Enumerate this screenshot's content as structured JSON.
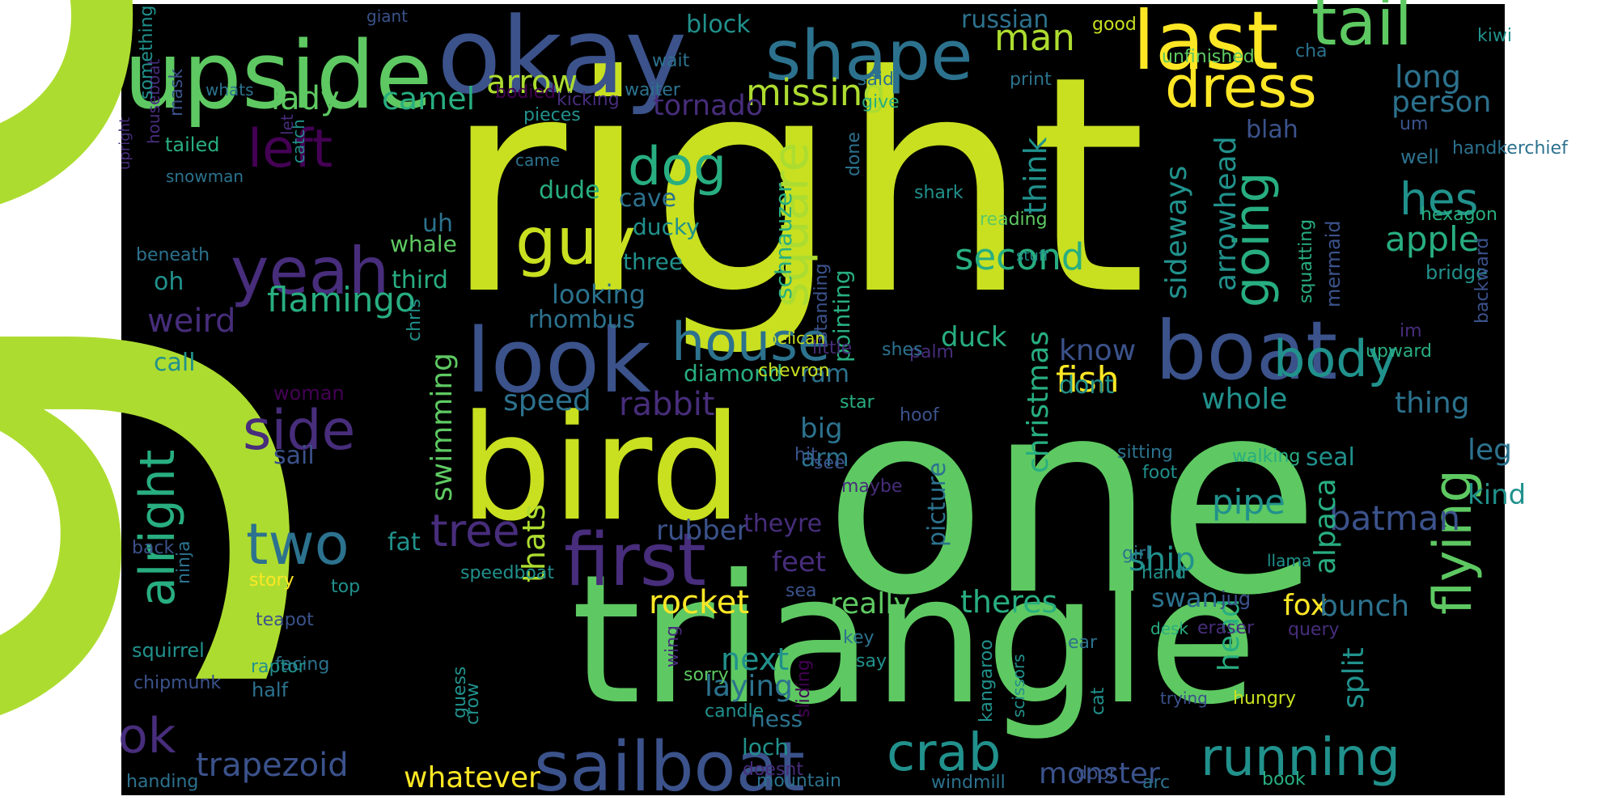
{
  "palette": {
    "page_background": "#ffffff",
    "panel_background": "#000000",
    "colors": [
      "#440154",
      "#472d7b",
      "#3b528b",
      "#2c728e",
      "#21918c",
      "#28ae80",
      "#5ec962",
      "#addc30",
      "#c8e020",
      "#fde725"
    ]
  },
  "words": [
    {
      "text": "got",
      "c": 7
    },
    {
      "text": "right",
      "c": 8
    },
    {
      "text": "one",
      "c": 6
    },
    {
      "text": "triangle",
      "c": 6
    },
    {
      "text": "bird",
      "c": 8
    },
    {
      "text": "okay",
      "c": 2
    },
    {
      "text": "upside",
      "c": 6
    },
    {
      "text": "shape",
      "c": 3
    },
    {
      "text": "last",
      "c": 9
    },
    {
      "text": "tail",
      "c": 6
    },
    {
      "text": "dress",
      "c": 9
    },
    {
      "text": "look",
      "c": 2
    },
    {
      "text": "boat",
      "c": 2
    },
    {
      "text": "first",
      "c": 1
    },
    {
      "text": "sailboat",
      "c": 2
    },
    {
      "text": "yeah",
      "c": 1
    },
    {
      "text": "guy",
      "c": 8
    },
    {
      "text": "dog",
      "c": 5
    },
    {
      "text": "two",
      "c": 3
    },
    {
      "text": "side",
      "c": 1
    },
    {
      "text": "left",
      "c": 0
    },
    {
      "text": "alright",
      "c": 5
    },
    {
      "text": "house",
      "c": 3
    },
    {
      "text": "running",
      "c": 4
    },
    {
      "text": "flying",
      "c": 6
    },
    {
      "text": "crab",
      "c": 4
    },
    {
      "text": "square",
      "c": 7
    },
    {
      "text": "going",
      "c": 5
    },
    {
      "text": "body",
      "c": 4
    },
    {
      "text": "hes",
      "c": 4
    },
    {
      "text": "tree",
      "c": 1
    },
    {
      "text": "ok",
      "c": 1
    },
    {
      "text": "missing",
      "c": 7
    },
    {
      "text": "man",
      "c": 7
    },
    {
      "text": "long",
      "c": 3
    },
    {
      "text": "arrow",
      "c": 7
    },
    {
      "text": "lady",
      "c": 6
    },
    {
      "text": "camel",
      "c": 5
    },
    {
      "text": "tornado",
      "c": 1
    },
    {
      "text": "person",
      "c": 3
    },
    {
      "text": "apple",
      "c": 5
    },
    {
      "text": "second",
      "c": 5
    },
    {
      "text": "flamingo",
      "c": 5
    },
    {
      "text": "weird",
      "c": 1
    },
    {
      "text": "rabbit",
      "c": 1
    },
    {
      "text": "speed",
      "c": 3
    },
    {
      "text": "fish",
      "c": 9
    },
    {
      "text": "whole",
      "c": 4
    },
    {
      "text": "thing",
      "c": 3
    },
    {
      "text": "christmas",
      "c": 5
    },
    {
      "text": "swimming",
      "c": 6
    },
    {
      "text": "pipe",
      "c": 4
    },
    {
      "text": "batman",
      "c": 2
    },
    {
      "text": "rocket",
      "c": 9
    },
    {
      "text": "thats",
      "c": 7
    },
    {
      "text": "theres",
      "c": 5
    },
    {
      "text": "fox",
      "c": 9
    },
    {
      "text": "bunch",
      "c": 3
    },
    {
      "text": "ship",
      "c": 4
    },
    {
      "text": "next",
      "c": 4
    },
    {
      "text": "laying",
      "c": 3
    },
    {
      "text": "trapezoid",
      "c": 2
    },
    {
      "text": "whatever",
      "c": 9
    },
    {
      "text": "monster",
      "c": 2
    },
    {
      "text": "head",
      "c": 5
    },
    {
      "text": "split",
      "c": 4
    },
    {
      "text": "alpaca",
      "c": 5
    },
    {
      "text": "sideways",
      "c": 4
    },
    {
      "text": "arrowhead",
      "c": 4
    },
    {
      "text": "think",
      "c": 4
    },
    {
      "text": "know",
      "c": 2
    },
    {
      "text": "dont",
      "c": 4
    },
    {
      "text": "really",
      "c": 6
    },
    {
      "text": "swan",
      "c": 3
    },
    {
      "text": "leg",
      "c": 3
    },
    {
      "text": "kind",
      "c": 4
    },
    {
      "text": "seal",
      "c": 4
    },
    {
      "text": "picture",
      "c": 3
    },
    {
      "text": "rubber",
      "c": 2
    },
    {
      "text": "theyre",
      "c": 1
    },
    {
      "text": "feet",
      "c": 1
    },
    {
      "text": "big",
      "c": 3
    },
    {
      "text": "arm",
      "c": 3
    },
    {
      "text": "duck",
      "c": 5
    },
    {
      "text": "diamond",
      "c": 5
    },
    {
      "text": "ram",
      "c": 3
    },
    {
      "text": "looking",
      "c": 3
    },
    {
      "text": "rhombus",
      "c": 3
    },
    {
      "text": "three",
      "c": 4
    },
    {
      "text": "ducky",
      "c": 4
    },
    {
      "text": "cave",
      "c": 3
    },
    {
      "text": "dude",
      "c": 5
    },
    {
      "text": "schnauzer",
      "c": 5
    },
    {
      "text": "pointing",
      "c": 5
    },
    {
      "text": "uh",
      "c": 3
    },
    {
      "text": "whale",
      "c": 6
    },
    {
      "text": "third",
      "c": 5
    },
    {
      "text": "oh",
      "c": 4
    },
    {
      "text": "call",
      "c": 4
    },
    {
      "text": "sail",
      "c": 2
    },
    {
      "text": "fat",
      "c": 4
    },
    {
      "text": "block",
      "c": 4
    },
    {
      "text": "russian",
      "c": 3
    },
    {
      "text": "good",
      "c": 8
    },
    {
      "text": "kiwi",
      "c": 4
    },
    {
      "text": "unfinished",
      "c": 6
    },
    {
      "text": "cha",
      "c": 3
    },
    {
      "text": "print",
      "c": 3
    },
    {
      "text": "said",
      "c": 3
    },
    {
      "text": "give",
      "c": 5
    },
    {
      "text": "done",
      "c": 3
    },
    {
      "text": "blah",
      "c": 2
    },
    {
      "text": "um",
      "c": 2
    },
    {
      "text": "handkerchief",
      "c": 3
    },
    {
      "text": "well",
      "c": 3
    },
    {
      "text": "hexagon",
      "c": 5
    },
    {
      "text": "bridge",
      "c": 4
    },
    {
      "text": "backward",
      "c": 2
    },
    {
      "text": "im",
      "c": 1
    },
    {
      "text": "upward",
      "c": 5
    },
    {
      "text": "mermaid",
      "c": 2
    },
    {
      "text": "squatting",
      "c": 5
    },
    {
      "text": "reading",
      "c": 6
    },
    {
      "text": "shark",
      "c": 4
    },
    {
      "text": "stuff",
      "c": 4
    },
    {
      "text": "palm",
      "c": 1
    },
    {
      "text": "sitting",
      "c": 3
    },
    {
      "text": "foot",
      "c": 4
    },
    {
      "text": "walking",
      "c": 5
    },
    {
      "text": "girl",
      "c": 3
    },
    {
      "text": "hand",
      "c": 4
    },
    {
      "text": "jug",
      "c": 2
    },
    {
      "text": "llama",
      "c": 4
    },
    {
      "text": "ear",
      "c": 3
    },
    {
      "text": "desk",
      "c": 5
    },
    {
      "text": "eraser",
      "c": 1
    },
    {
      "text": "query",
      "c": 1
    },
    {
      "text": "cat",
      "c": 4
    },
    {
      "text": "kangaroo",
      "c": 4
    },
    {
      "text": "scissors",
      "c": 4
    },
    {
      "text": "trying",
      "c": 2
    },
    {
      "text": "hungry",
      "c": 8
    },
    {
      "text": "door",
      "c": 2
    },
    {
      "text": "arc",
      "c": 3
    },
    {
      "text": "book",
      "c": 5
    },
    {
      "text": "windmill",
      "c": 3
    },
    {
      "text": "mountain",
      "c": 3
    },
    {
      "text": "ness",
      "c": 3
    },
    {
      "text": "loch",
      "c": 4
    },
    {
      "text": "doesnt",
      "c": 1
    },
    {
      "text": "sliding",
      "c": 0
    },
    {
      "text": "candle",
      "c": 4
    },
    {
      "text": "sorry",
      "c": 6
    },
    {
      "text": "wing",
      "c": 1
    },
    {
      "text": "say",
      "c": 4
    },
    {
      "text": "key",
      "c": 3
    },
    {
      "text": "sea",
      "c": 2
    },
    {
      "text": "maybe",
      "c": 1
    },
    {
      "text": "see",
      "c": 2
    },
    {
      "text": "hit",
      "c": 2
    },
    {
      "text": "hoof",
      "c": 2
    },
    {
      "text": "star",
      "c": 5
    },
    {
      "text": "shes",
      "c": 3
    },
    {
      "text": "little",
      "c": 1
    },
    {
      "text": "standing",
      "c": 2
    },
    {
      "text": "pelican",
      "c": 8
    },
    {
      "text": "chevron",
      "c": 8
    },
    {
      "text": "chris",
      "c": 4
    },
    {
      "text": "woman",
      "c": 0
    },
    {
      "text": "speedboat",
      "c": 4
    },
    {
      "text": "top",
      "c": 4
    },
    {
      "text": "story",
      "c": 9
    },
    {
      "text": "back",
      "c": 2
    },
    {
      "text": "ninja",
      "c": 3
    },
    {
      "text": "teapot",
      "c": 2
    },
    {
      "text": "facing",
      "c": 3
    },
    {
      "text": "crow",
      "c": 4
    },
    {
      "text": "guess",
      "c": 4
    },
    {
      "text": "half",
      "c": 3
    },
    {
      "text": "raptor",
      "c": 4
    },
    {
      "text": "squirrel",
      "c": 4
    },
    {
      "text": "chipmunk",
      "c": 2
    },
    {
      "text": "handing",
      "c": 3
    },
    {
      "text": "beneath",
      "c": 3
    },
    {
      "text": "tailed",
      "c": 5
    },
    {
      "text": "mask",
      "c": 2
    },
    {
      "text": "upright",
      "c": 1
    },
    {
      "text": "houseboat",
      "c": 1
    },
    {
      "text": "something",
      "c": 4
    },
    {
      "text": "whats",
      "c": 3
    },
    {
      "text": "snowman",
      "c": 3
    },
    {
      "text": "catch",
      "c": 4
    },
    {
      "text": "let",
      "c": 1
    },
    {
      "text": "came",
      "c": 3
    },
    {
      "text": "pieces",
      "c": 4
    },
    {
      "text": "bodied",
      "c": 0
    },
    {
      "text": "kicking",
      "c": 1
    },
    {
      "text": "waiter",
      "c": 3
    },
    {
      "text": "wait",
      "c": 3
    },
    {
      "text": "giant",
      "c": 2
    }
  ]
}
